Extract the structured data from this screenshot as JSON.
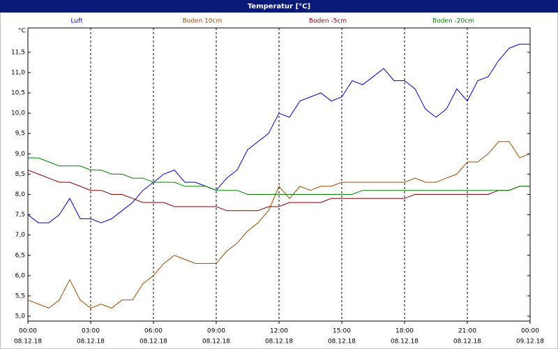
{
  "chart_data": {
    "type": "line",
    "title": "Temperatur [°C]",
    "y_label": "°C",
    "x": [
      0,
      0.5,
      1,
      1.5,
      2,
      2.5,
      3,
      3.5,
      4,
      4.5,
      5,
      5.5,
      6,
      6.5,
      7,
      7.5,
      8,
      8.5,
      9,
      9.5,
      10,
      10.5,
      11,
      11.5,
      12,
      12.5,
      13,
      13.5,
      14,
      14.5,
      15,
      15.5,
      16,
      16.5,
      17,
      17.5,
      18,
      18.5,
      19,
      19.5,
      20,
      20.5,
      21,
      21.5,
      22,
      22.5,
      23,
      23.5,
      24
    ],
    "series": [
      {
        "name": "Luft",
        "color": "#0000c8",
        "values": [
          7.5,
          7.3,
          7.3,
          7.5,
          7.9,
          7.4,
          7.4,
          7.3,
          7.4,
          7.6,
          7.8,
          8.1,
          8.3,
          8.5,
          8.6,
          8.3,
          8.3,
          8.2,
          8.1,
          8.4,
          8.6,
          9.1,
          9.3,
          9.5,
          10.0,
          9.9,
          10.3,
          10.4,
          10.5,
          10.3,
          10.4,
          10.8,
          10.7,
          10.9,
          11.1,
          10.8,
          10.8,
          10.6,
          10.1,
          9.9,
          10.1,
          10.6,
          10.3,
          10.8,
          10.9,
          11.3,
          11.6,
          11.7,
          11.7
        ]
      },
      {
        "name": "Boden 10cm",
        "color": "#9c4a00",
        "values": [
          5.4,
          5.3,
          5.2,
          5.4,
          5.9,
          5.4,
          5.2,
          5.3,
          5.2,
          5.4,
          5.4,
          5.8,
          6.0,
          6.3,
          6.5,
          6.4,
          6.3,
          6.3,
          6.3,
          6.6,
          6.8,
          7.1,
          7.3,
          7.6,
          8.2,
          7.9,
          8.2,
          8.1,
          8.2,
          8.2,
          8.3,
          8.3,
          8.3,
          8.3,
          8.3,
          8.3,
          8.3,
          8.4,
          8.3,
          8.3,
          8.4,
          8.5,
          8.8,
          8.8,
          9.0,
          9.3,
          9.3,
          8.9,
          9.0
        ]
      },
      {
        "name": "Boden -5cm",
        "color": "#800000",
        "values": [
          8.6,
          8.5,
          8.4,
          8.3,
          8.3,
          8.2,
          8.1,
          8.1,
          8.0,
          8.0,
          7.9,
          7.8,
          7.8,
          7.8,
          7.7,
          7.7,
          7.7,
          7.7,
          7.7,
          7.6,
          7.6,
          7.6,
          7.6,
          7.7,
          7.7,
          7.8,
          7.8,
          7.8,
          7.8,
          7.9,
          7.9,
          7.9,
          7.9,
          7.9,
          7.9,
          7.9,
          7.9,
          8.0,
          8.0,
          8.0,
          8.0,
          8.0,
          8.0,
          8.0,
          8.0,
          8.1,
          8.1,
          8.2,
          8.2
        ]
      },
      {
        "name": "Boden -20cm",
        "color": "#008000",
        "values": [
          8.9,
          8.9,
          8.8,
          8.7,
          8.7,
          8.7,
          8.6,
          8.6,
          8.5,
          8.5,
          8.4,
          8.4,
          8.3,
          8.3,
          8.3,
          8.2,
          8.2,
          8.2,
          8.1,
          8.1,
          8.1,
          8.0,
          8.0,
          8.0,
          8.0,
          8.0,
          8.0,
          8.0,
          8.0,
          8.0,
          8.0,
          8.0,
          8.1,
          8.1,
          8.1,
          8.1,
          8.1,
          8.1,
          8.1,
          8.1,
          8.1,
          8.1,
          8.1,
          8.1,
          8.1,
          8.1,
          8.1,
          8.2,
          8.2
        ]
      }
    ],
    "xlim": [
      0,
      24
    ],
    "ylim": [
      4.88,
      12.1
    ],
    "xticks": [
      {
        "value": 0,
        "label": "00:00"
      },
      {
        "value": 3,
        "label": "03:00"
      },
      {
        "value": 6,
        "label": "06:00"
      },
      {
        "value": 9,
        "label": "09:00"
      },
      {
        "value": 12,
        "label": "12:00"
      },
      {
        "value": 15,
        "label": "15:00"
      },
      {
        "value": 18,
        "label": "18:00"
      },
      {
        "value": 21,
        "label": "21:00"
      },
      {
        "value": 24,
        "label": "00:00"
      }
    ],
    "xtick_dates": [
      "08.12.18",
      "08.12.18",
      "08.12.18",
      "08.12.18",
      "08.12.18",
      "08.12.18",
      "08.12.18",
      "08.12.18",
      "09.12.18"
    ],
    "yticks": [
      {
        "value": 5,
        "label": "5,0"
      },
      {
        "value": 5.5,
        "label": "5,5"
      },
      {
        "value": 6,
        "label": "6,0"
      },
      {
        "value": 6.5,
        "label": "6,5"
      },
      {
        "value": 7,
        "label": "7,0"
      },
      {
        "value": 7.5,
        "label": "7,5"
      },
      {
        "value": 8,
        "label": "8,0"
      },
      {
        "value": 8.5,
        "label": "8,5"
      },
      {
        "value": 9,
        "label": "9,0"
      },
      {
        "value": 9.5,
        "label": "9,5"
      },
      {
        "value": 10,
        "label": "10,0"
      },
      {
        "value": 10.5,
        "label": "10,5"
      },
      {
        "value": 11,
        "label": "11,0"
      },
      {
        "value": 11.5,
        "label": "11,5"
      }
    ],
    "grid": "x"
  }
}
